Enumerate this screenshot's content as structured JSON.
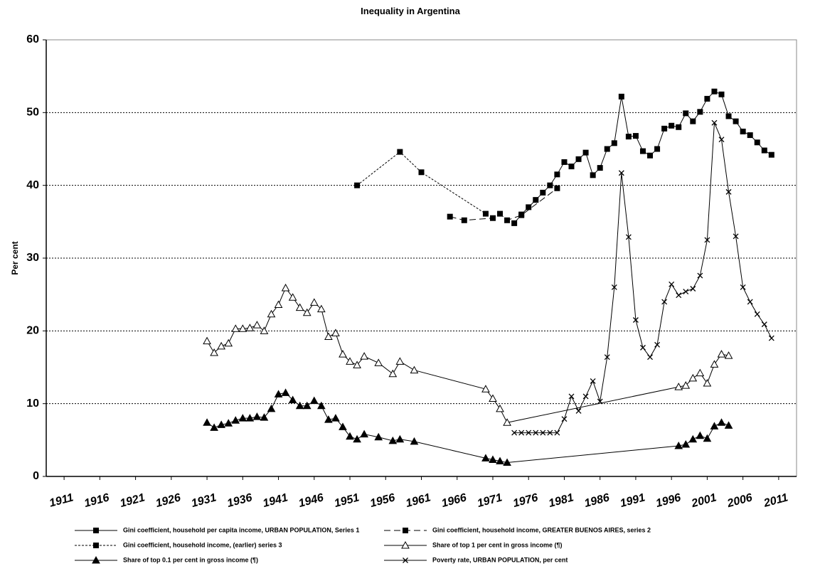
{
  "chart_data": {
    "type": "line",
    "title": "Inequality in Argentina",
    "y_label": "Per cent",
    "xlim": [
      1908.5,
      2013.5
    ],
    "xticks": [
      1911,
      1916,
      1921,
      1926,
      1931,
      1936,
      1941,
      1946,
      1951,
      1956,
      1961,
      1966,
      1971,
      1976,
      1981,
      1986,
      1991,
      1996,
      2001,
      2006,
      2011
    ],
    "ylim": [
      0,
      60
    ],
    "yticks": [
      0,
      10,
      20,
      30,
      40,
      50,
      60
    ],
    "grid": true,
    "legend": "bottom",
    "series": [
      {
        "name": "Gini coefficient,  household per capita income,  URBAN POPULATION, Series 1",
        "color": "#000000",
        "marker": "square",
        "dash": "none",
        "x": [
          1974,
          1975,
          1976,
          1977,
          1978,
          1979,
          1980,
          1981,
          1982,
          1983,
          1984,
          1985,
          1986,
          1987,
          1988,
          1989,
          1990,
          1991,
          1992,
          1993,
          1994,
          1995,
          1996,
          1997,
          1998,
          1999,
          2000,
          2001,
          2002,
          2003,
          2004,
          2005,
          2006,
          2007,
          2008,
          2009,
          2010
        ],
        "values": [
          34.8,
          36.0,
          37.0,
          38.0,
          39.0,
          40.0,
          41.5,
          43.2,
          42.6,
          43.6,
          44.5,
          41.4,
          42.4,
          45.0,
          45.8,
          52.2,
          46.7,
          46.8,
          44.7,
          44.1,
          45.0,
          47.8,
          48.2,
          48.0,
          49.9,
          48.8,
          50.1,
          51.9,
          52.9,
          52.5,
          49.5,
          48.8,
          47.4,
          46.9,
          45.9,
          44.8,
          44.2
        ]
      },
      {
        "name": "Gini coefficient,  household income,  GREATER BUENOS AIRES,  series 2",
        "color": "#000000",
        "marker": "square",
        "dash": "9,5",
        "x": [
          1965,
          1967,
          1971,
          1972,
          1973,
          1975,
          1980
        ],
        "values": [
          35.7,
          35.2,
          35.5,
          36.1,
          35.2,
          35.9,
          39.6
        ]
      },
      {
        "name": "Gini coefficient,  household  income,  (earlier)  series 3",
        "color": "#000000",
        "marker": "square",
        "dash": "3,2",
        "x": [
          1952,
          1958,
          1961,
          1970
        ],
        "values": [
          40.0,
          44.6,
          41.8,
          36.1
        ]
      },
      {
        "name": "Share of top 1 per cent  in gross income  (¶)",
        "color": "#000000",
        "marker": "triangle-open",
        "dash": "none",
        "x": [
          1931,
          1932,
          1933,
          1934,
          1935,
          1936,
          1937,
          1938,
          1939,
          1940,
          1941,
          1942,
          1943,
          1944,
          1945,
          1946,
          1947,
          1948,
          1949,
          1950,
          1951,
          1952,
          1953,
          1955,
          1957,
          1958,
          1960,
          1970,
          1971,
          1972,
          1973,
          1997,
          1998,
          1999,
          2000,
          2001,
          2002,
          2003,
          2004
        ],
        "values": [
          18.6,
          17.0,
          17.9,
          18.3,
          20.3,
          20.3,
          20.4,
          20.8,
          20.0,
          22.3,
          23.6,
          25.9,
          24.6,
          23.2,
          22.5,
          23.9,
          23.0,
          19.2,
          19.7,
          16.8,
          15.8,
          15.3,
          16.5,
          15.6,
          14.1,
          15.8,
          14.6,
          12.0,
          10.7,
          9.3,
          7.4,
          12.3,
          12.5,
          13.5,
          14.2,
          12.8,
          15.4,
          16.8,
          16.6
        ]
      },
      {
        "name": "Share of top 0.1 per cent  in gross income  (¶)",
        "color": "#000000",
        "marker": "triangle",
        "dash": "none",
        "x": [
          1931,
          1932,
          1933,
          1934,
          1935,
          1936,
          1937,
          1938,
          1939,
          1940,
          1941,
          1942,
          1943,
          1944,
          1945,
          1946,
          1947,
          1948,
          1949,
          1950,
          1951,
          1952,
          1953,
          1955,
          1957,
          1958,
          1960,
          1970,
          1971,
          1972,
          1973,
          1997,
          1998,
          1999,
          2000,
          2001,
          2002,
          2003,
          2004
        ],
        "values": [
          7.4,
          6.7,
          7.1,
          7.3,
          7.7,
          8.0,
          8.0,
          8.2,
          8.1,
          9.3,
          11.3,
          11.5,
          10.5,
          9.7,
          9.7,
          10.4,
          9.7,
          7.8,
          8.0,
          6.8,
          5.5,
          5.1,
          5.8,
          5.4,
          4.9,
          5.1,
          4.8,
          2.5,
          2.3,
          2.1,
          1.9,
          4.2,
          4.4,
          5.1,
          5.6,
          5.2,
          6.9,
          7.4,
          7.0
        ]
      },
      {
        "name": "Poverty rate,  URBAN POPULATION,  per cent",
        "color": "#000000",
        "marker": "x",
        "dash": "none",
        "x": [
          1974,
          1975,
          1976,
          1977,
          1978,
          1979,
          1980,
          1981,
          1982,
          1983,
          1984,
          1985,
          1986,
          1987,
          1988,
          1989,
          1990,
          1991,
          1992,
          1993,
          1994,
          1995,
          1996,
          1997,
          1998,
          1999,
          2000,
          2001,
          2002,
          2003,
          2004,
          2005,
          2006,
          2007,
          2008,
          2009,
          2010
        ],
        "values": [
          6.0,
          6.0,
          6.0,
          6.0,
          6.0,
          6.0,
          6.0,
          7.9,
          11.0,
          9.0,
          11.0,
          13.1,
          10.3,
          16.4,
          26.0,
          41.7,
          32.9,
          21.5,
          17.7,
          16.4,
          18.1,
          24.0,
          26.4,
          24.9,
          25.4,
          25.8,
          27.6,
          32.5,
          48.6,
          46.3,
          39.1,
          33.0,
          26.0,
          24.0,
          22.3,
          20.9,
          19.0
        ]
      }
    ]
  }
}
